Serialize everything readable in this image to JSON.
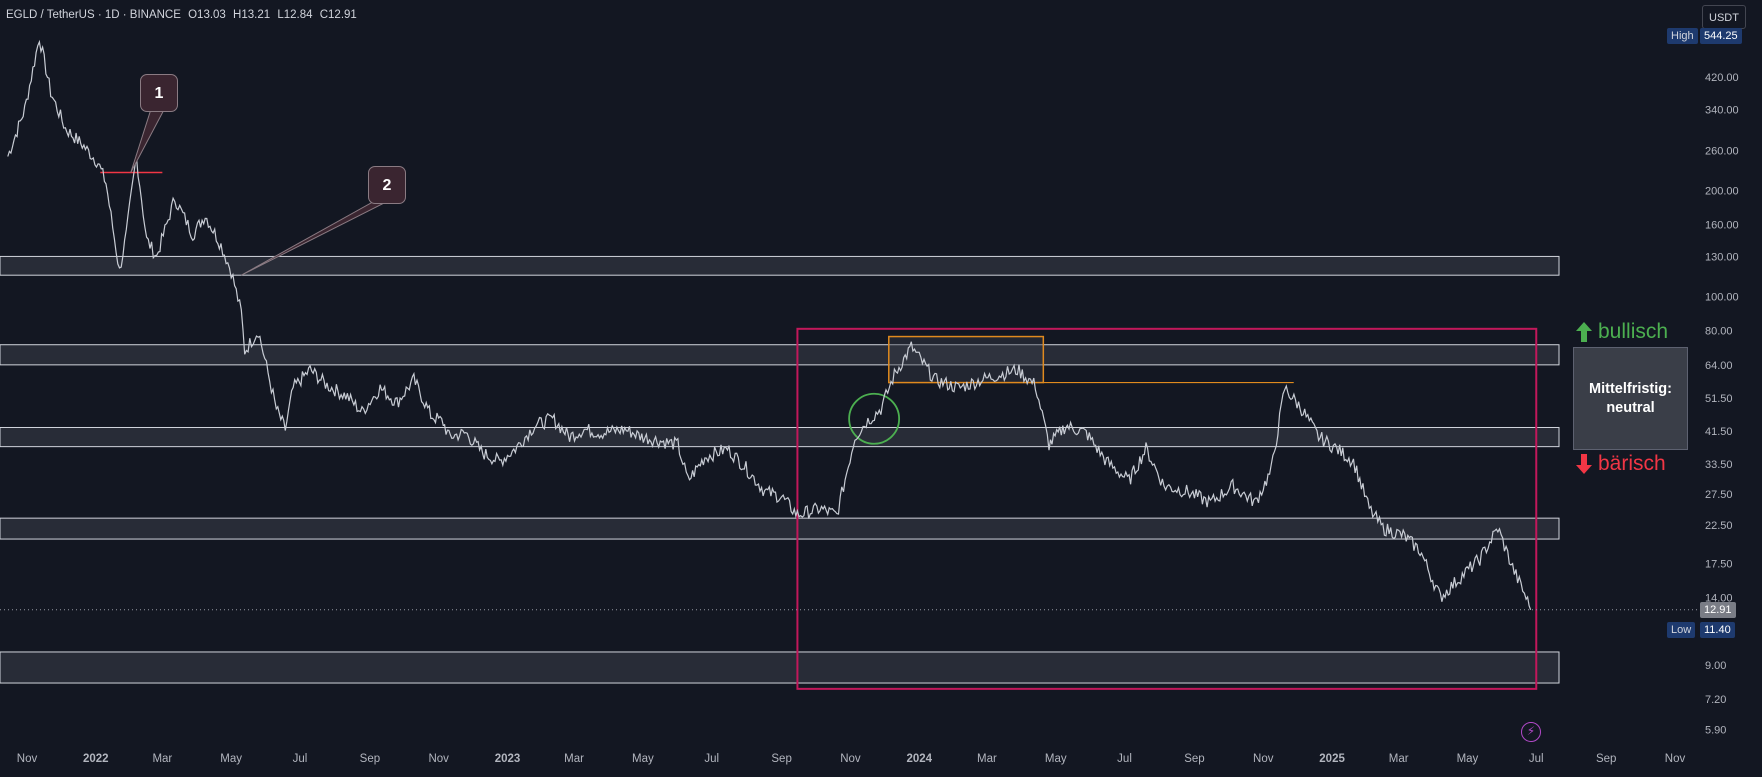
{
  "header": {
    "symbol": "EGLD / TetherUS · 1D · BINANCE",
    "open": "O13.03",
    "high": "H13.21",
    "low": "L12.84",
    "close": "C12.91"
  },
  "currency_button": "USDT",
  "price_tags": {
    "high_label": "High",
    "high_value": "544.25",
    "low_label": "Low",
    "low_value": "11.40",
    "last_value": "12.91"
  },
  "markers": {
    "one": "1",
    "two": "2"
  },
  "sentiment": {
    "bullish": "bullisch",
    "bearish": "bärisch",
    "neutral_line1": "Mittelfristig:",
    "neutral_line2": "neutral"
  },
  "colors": {
    "background": "#131722",
    "price_line": "#c8ccd4",
    "zone_fill": "#3a3e48",
    "big_box": "#c2185b",
    "range_box": "#e08a1e",
    "circle": "#4caf50",
    "bullish": "#4caf50",
    "bearish": "#f23645",
    "red_line": "#f23645"
  },
  "chart_data": {
    "type": "line",
    "symbol": "EGLD/USDT",
    "interval": "1D",
    "scale": "log",
    "grid": false,
    "y_ticks": [
      "420.00",
      "340.00",
      "260.00",
      "200.00",
      "160.00",
      "130.00",
      "100.00",
      "80.00",
      "64.00",
      "51.50",
      "41.50",
      "33.50",
      "27.50",
      "22.50",
      "17.50",
      "14.00",
      "9.00",
      "7.20",
      "5.90"
    ],
    "x_ticks": [
      "Nov",
      "2022",
      "Mar",
      "May",
      "Jul",
      "Sep",
      "Nov",
      "2023",
      "Mar",
      "May",
      "Jul",
      "Sep",
      "Nov",
      "2024",
      "Mar",
      "May",
      "Jul",
      "Sep",
      "Nov",
      "2025",
      "Mar",
      "May",
      "Jul",
      "Sep",
      "Nov"
    ],
    "x_ticks_bold": [
      "2022",
      "2023",
      "2024",
      "2025"
    ],
    "series": [
      {
        "x": [
          "2021-10-15",
          "2021-10-30",
          "2021-11-12",
          "2021-11-22",
          "2021-12-05",
          "2021-12-20",
          "2022-01-03",
          "2022-01-10",
          "2022-01-22",
          "2022-01-28",
          "2022-02-06",
          "2022-02-15",
          "2022-02-24",
          "2022-03-12",
          "2022-03-28",
          "2022-04-08",
          "2022-04-22",
          "2022-05-01",
          "2022-05-10",
          "2022-05-13",
          "2022-05-25",
          "2022-06-10",
          "2022-06-18",
          "2022-06-25",
          "2022-07-10",
          "2022-07-25",
          "2022-08-12",
          "2022-08-25",
          "2022-09-10",
          "2022-09-25",
          "2022-10-10",
          "2022-10-25",
          "2022-11-05",
          "2022-11-10",
          "2022-11-25",
          "2022-12-10",
          "2022-12-25",
          "2023-01-08",
          "2023-01-25",
          "2023-02-10",
          "2023-02-25",
          "2023-03-10",
          "2023-03-25",
          "2023-04-15",
          "2023-04-30",
          "2023-05-15",
          "2023-06-01",
          "2023-06-10",
          "2023-06-25",
          "2023-07-15",
          "2023-07-30",
          "2023-08-17",
          "2023-09-01",
          "2023-09-15",
          "2023-10-05",
          "2023-10-20",
          "2023-11-05",
          "2023-11-15",
          "2023-11-28",
          "2023-12-10",
          "2023-12-25",
          "2024-01-15",
          "2024-02-05",
          "2024-02-25",
          "2024-03-12",
          "2024-03-28",
          "2024-04-13",
          "2024-04-25",
          "2024-05-10",
          "2024-05-28",
          "2024-06-15",
          "2024-07-05",
          "2024-07-20",
          "2024-08-05",
          "2024-08-25",
          "2024-09-15",
          "2024-10-05",
          "2024-10-25",
          "2024-11-08",
          "2024-11-20",
          "2024-12-05",
          "2024-12-20",
          "2025-01-05",
          "2025-01-20",
          "2025-02-03",
          "2025-02-15",
          "2025-03-05",
          "2025-03-20",
          "2025-04-07",
          "2025-04-25",
          "2025-05-12",
          "2025-05-28",
          "2025-06-10",
          "2025-06-22",
          "2025-06-26"
        ],
        "y": [
          250,
          340,
          544,
          380,
          300,
          270,
          240,
          210,
          118,
          150,
          250,
          145,
          130,
          190,
          150,
          170,
          140,
          118,
          90,
          70,
          80,
          48,
          42,
          55,
          62,
          56,
          52,
          47,
          55,
          50,
          58,
          46,
          44,
          40,
          41,
          36,
          34,
          37,
          43,
          45,
          40,
          42,
          41,
          42,
          40,
          39,
          38,
          30,
          35,
          37,
          33,
          28,
          27,
          24,
          25,
          24,
          40,
          44,
          48,
          60,
          72,
          58,
          55,
          58,
          60,
          62,
          56,
          38,
          43,
          41,
          34,
          30,
          37,
          29,
          28,
          26,
          29,
          26,
          32,
          55,
          48,
          40,
          37,
          34,
          25,
          22,
          21,
          19,
          14,
          16,
          18,
          22,
          17,
          14,
          12.91
        ]
      }
    ],
    "low": 11.4,
    "high": 544.25,
    "last": 12.91,
    "zones": [
      {
        "from": 115,
        "to": 130
      },
      {
        "from": 64,
        "to": 73
      },
      {
        "from": 37.5,
        "to": 42.5
      },
      {
        "from": 20.5,
        "to": 23.5
      },
      {
        "from": 8.0,
        "to": 9.8
      }
    ],
    "range_box": {
      "x_from": "2023-09-15",
      "x_to": "2025-07-01",
      "y_from": 7.7,
      "y_to": 81
    },
    "consolidation_box": {
      "x_from": "2023-12-05",
      "x_to": "2024-04-20",
      "y_from": 57,
      "y_to": 77
    },
    "prior_high_line": {
      "x_from": "2024-04-20",
      "x_to": "2024-11-28",
      "y": 57
    },
    "support_line": {
      "x_from": "2022-01-05",
      "x_to": "2022-03-01",
      "y": 225
    },
    "breakout_circle": {
      "x": "2023-11-22",
      "y": 45
    },
    "annotations": [
      {
        "label": "1",
        "x": "2022-02-01",
        "y": 225
      },
      {
        "label": "2",
        "x": "2022-05-10",
        "y": 115
      }
    ]
  }
}
